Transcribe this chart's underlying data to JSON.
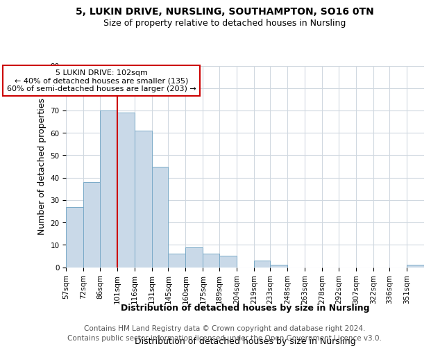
{
  "title_line1": "5, LUKIN DRIVE, NURSLING, SOUTHAMPTON, SO16 0TN",
  "title_line2": "Size of property relative to detached houses in Nursling",
  "xlabel": "Distribution of detached houses by size in Nursling",
  "ylabel": "Number of detached properties",
  "footer_line1": "Contains HM Land Registry data © Crown copyright and database right 2024.",
  "footer_line2": "Contains public sector information licensed under the Open Government Licence v3.0.",
  "bin_labels": [
    "57sqm",
    "72sqm",
    "86sqm",
    "101sqm",
    "116sqm",
    "131sqm",
    "145sqm",
    "160sqm",
    "175sqm",
    "189sqm",
    "204sqm",
    "219sqm",
    "233sqm",
    "248sqm",
    "263sqm",
    "278sqm",
    "292sqm",
    "307sqm",
    "322sqm",
    "336sqm",
    "351sqm"
  ],
  "bin_edges": [
    57,
    72,
    86,
    101,
    116,
    131,
    145,
    160,
    175,
    189,
    204,
    219,
    233,
    248,
    263,
    278,
    292,
    307,
    322,
    336,
    351,
    366
  ],
  "counts": [
    27,
    38,
    70,
    69,
    61,
    45,
    6,
    9,
    6,
    5,
    0,
    3,
    1,
    0,
    0,
    0,
    0,
    0,
    0,
    0,
    1
  ],
  "bar_facecolor": "#c9d9e8",
  "bar_edgecolor": "#7aaac8",
  "red_line_x": 101,
  "annotation_text": "5 LUKIN DRIVE: 102sqm\n← 40% of detached houses are smaller (135)\n60% of semi-detached houses are larger (203) →",
  "annotation_box_edgecolor": "#cc0000",
  "annotation_box_facecolor": "#ffffff",
  "red_line_color": "#cc0000",
  "ylim": [
    0,
    90
  ],
  "yticks": [
    0,
    10,
    20,
    30,
    40,
    50,
    60,
    70,
    80,
    90
  ],
  "grid_color": "#d0d8e0",
  "background_color": "#ffffff",
  "title_fontsize": 10,
  "subtitle_fontsize": 9,
  "axis_label_fontsize": 9,
  "tick_fontsize": 7.5,
  "footer_fontsize": 7.5,
  "annotation_fontsize": 8
}
